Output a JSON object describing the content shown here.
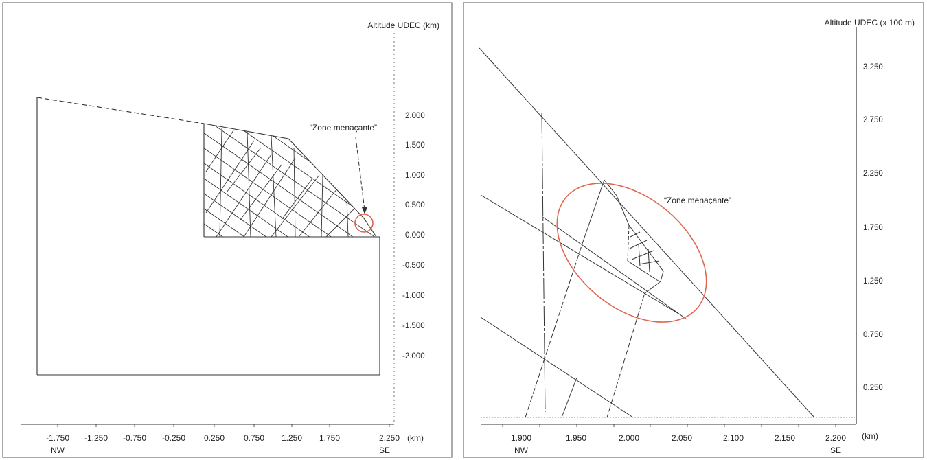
{
  "left_panel": {
    "axis_title": "Altitude UDEC (km)",
    "y_ticks": [
      "2.000",
      "1.500",
      "1.000",
      "0.500",
      "0.000",
      "-0.500",
      "-1.000",
      "-1.500",
      "-2.000"
    ],
    "x_ticks": [
      "-1.750",
      "-1.250",
      "-0.750",
      "-0.250",
      "0.250",
      "0.750",
      "1.250",
      "1.750",
      "2.250"
    ],
    "x_unit": "(km)",
    "dir_left": "NW",
    "dir_right": "SE",
    "zone_label": "“Zone menaçante”"
  },
  "right_panel": {
    "axis_title": "Altitude UDEC (x 100 m)",
    "y_ticks": [
      "3.250",
      "2.750",
      "2.250",
      "1.750",
      "1.250",
      "0.750",
      "0.250"
    ],
    "x_ticks": [
      "1.900",
      "1.950",
      "2.000",
      "2.050",
      "2.100",
      "2.150",
      "2.200"
    ],
    "x_unit": "(km)",
    "dir_left": "NW",
    "dir_right": "SE",
    "zone_label": "“Zone menaçante”"
  },
  "colors": {
    "line": "#333333",
    "zone_circle": "#e0664d",
    "frame": "#555555"
  }
}
